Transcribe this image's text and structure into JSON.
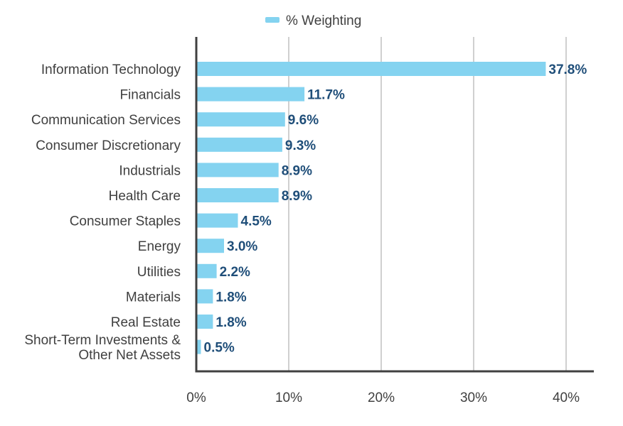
{
  "chart_data": {
    "type": "bar",
    "orientation": "horizontal",
    "categories": [
      [
        "Information Technology"
      ],
      [
        "Financials"
      ],
      [
        "Communication Services"
      ],
      [
        "Consumer Discretionary"
      ],
      [
        "Industrials"
      ],
      [
        "Health Care"
      ],
      [
        "Consumer Staples"
      ],
      [
        "Energy"
      ],
      [
        "Utilities"
      ],
      [
        "Materials"
      ],
      [
        "Real Estate"
      ],
      [
        "Short-Term Investments &",
        "Other Net Assets"
      ]
    ],
    "series": [
      {
        "name": "% Weighting",
        "values": [
          37.8,
          11.7,
          9.6,
          9.3,
          8.9,
          8.9,
          4.5,
          3.0,
          2.2,
          1.8,
          1.8,
          0.5
        ],
        "data_labels": [
          "37.8%",
          "11.7%",
          "9.6%",
          "9.3%",
          "8.9%",
          "8.9%",
          "4.5%",
          "3.0%",
          "2.2%",
          "1.8%",
          "1.8%",
          "0.5%"
        ]
      }
    ],
    "xlim": [
      0,
      43
    ],
    "xticks": [
      0,
      10,
      20,
      30,
      40
    ],
    "xtick_labels": [
      "0%",
      "10%",
      "20%",
      "30%",
      "40%"
    ],
    "grid": "vertical",
    "legend_position": "top-center",
    "colors": {
      "bar": "#84d3f0",
      "data_label": "#1f4e79",
      "axis": "#404040",
      "grid": "#d0d0d0",
      "text": "#404040"
    }
  }
}
